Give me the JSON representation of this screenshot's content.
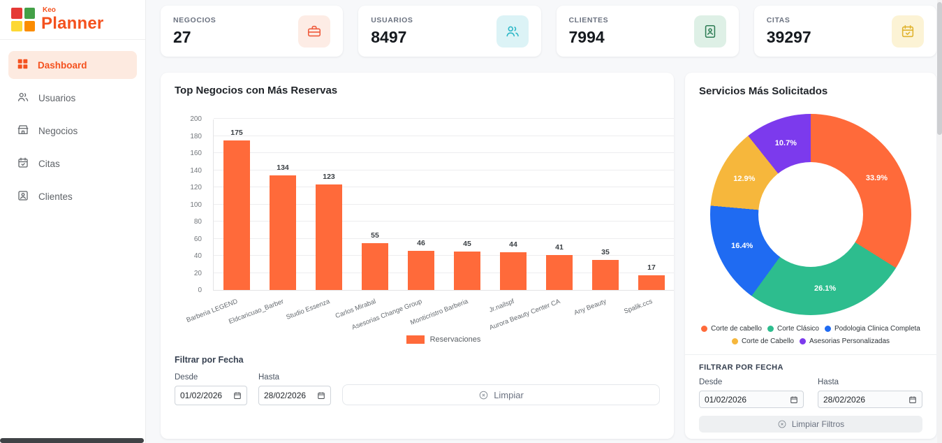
{
  "brand": {
    "name_top": "Keo",
    "name": "Planner"
  },
  "sidebar": {
    "items": [
      {
        "label": "Dashboard",
        "icon": "dashboard-icon",
        "active": true
      },
      {
        "label": "Usuarios",
        "icon": "users-icon",
        "active": false
      },
      {
        "label": "Negocios",
        "icon": "storefront-icon",
        "active": false
      },
      {
        "label": "Citas",
        "icon": "calendar-check-icon",
        "active": false
      },
      {
        "label": "Clientes",
        "icon": "contact-icon",
        "active": false
      }
    ]
  },
  "stats": [
    {
      "label": "NEGOCIOS",
      "value": "27",
      "icon": "briefcase-icon",
      "icon_color": "#ef5b3c",
      "icon_bg": "#fdece5"
    },
    {
      "label": "USUARIOS",
      "value": "8497",
      "icon": "users-icon",
      "icon_color": "#29b6c6",
      "icon_bg": "#dcf3f6"
    },
    {
      "label": "CLIENTES",
      "value": "7994",
      "icon": "contact-card-icon",
      "icon_color": "#2e7d55",
      "icon_bg": "#def0e6"
    },
    {
      "label": "CITAS",
      "value": "39297",
      "icon": "calendar-check-icon",
      "icon_color": "#e0b32e",
      "icon_bg": "#fcf3d5"
    }
  ],
  "bar_card": {
    "title": "Top Negocios con Más Reservas",
    "filter_title": "Filtrar por Fecha",
    "from_label": "Desde",
    "to_label": "Hasta",
    "from_value": "01/02/2026",
    "to_value": "28/02/2026",
    "clear_label": "Limpiar"
  },
  "donut_card": {
    "title": "Servicios Más Solicitados",
    "filter_title": "FILTRAR POR FECHA",
    "from_label": "Desde",
    "to_label": "Hasta",
    "from_value": "01/02/2026",
    "to_value": "28/02/2026",
    "clear_label": "Limpiar Filtros"
  },
  "colors": {
    "accent": "#f4511e",
    "bar": "#ff6a3a",
    "page_bg": "#f7f8fa"
  },
  "chart_data": [
    {
      "type": "bar",
      "title": "Top Negocios con Más Reservas",
      "categories": [
        "Barberia LEGEND",
        "Eldcaricuao_Barber",
        "Studio Essenza",
        "Carlos Mirabal",
        "Asesorias Change Group",
        "Monticristro Barberia",
        "Jr.nailspf",
        "Aurora Beauty Center CA",
        "Any Beauty",
        "Spalik.ccs"
      ],
      "values": [
        175,
        134,
        123,
        55,
        46,
        45,
        44,
        41,
        35,
        17
      ],
      "series_name": "Reservaciones",
      "xlabel": "",
      "ylabel": "",
      "ylim": [
        0,
        200
      ],
      "ytick_step": 20,
      "bar_color": "#ff6a3a",
      "grid": true,
      "legend_position": "bottom"
    },
    {
      "type": "pie",
      "donut": true,
      "title": "Servicios Más Solicitados",
      "labels": [
        "Corte de cabello",
        "Corte Clásico",
        "Podologia Clinica Completa",
        "Corte de Cabello",
        "Asesorias Personalizadas"
      ],
      "values_pct": [
        33.9,
        26.1,
        16.4,
        12.9,
        10.7
      ],
      "colors": [
        "#ff6a3a",
        "#2dbd8e",
        "#1f6bf2",
        "#f6b73c",
        "#7c3aed"
      ],
      "legend_position": "bottom"
    }
  ]
}
